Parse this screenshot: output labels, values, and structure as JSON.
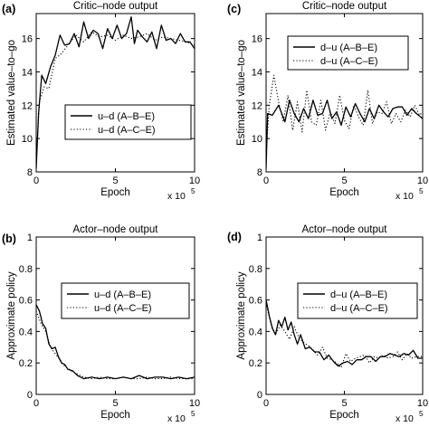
{
  "chart_data": [
    {
      "type": "line",
      "panel_label": "(a)",
      "title": "Critic–node output",
      "xlabel": "Epoch",
      "x_exponent": "x 10",
      "x_exponent_power": "5",
      "ylabel": "Estimated value–to–go",
      "xlim": [
        0,
        10
      ],
      "ylim": [
        8,
        17.5
      ],
      "xticks": [
        "0",
        "5",
        "10"
      ],
      "yticks": [
        "8",
        "10",
        "12",
        "14",
        "16"
      ],
      "xtick_values": [
        0,
        5,
        10
      ],
      "ytick_values": [
        8,
        10,
        12,
        14,
        16
      ],
      "legend_position": "lower-right",
      "series": [
        {
          "name": "u–d (A–B–E)",
          "style": "solid",
          "x": [
            0,
            0.15,
            0.35,
            0.6,
            0.9,
            1.2,
            1.5,
            1.8,
            2.1,
            2.4,
            2.7,
            3.0,
            3.3,
            3.6,
            3.9,
            4.2,
            4.5,
            4.8,
            5.1,
            5.4,
            5.7,
            6.0,
            6.2,
            6.4,
            6.7,
            7.0,
            7.3,
            7.6,
            7.9,
            8.2,
            8.5,
            8.8,
            9.1,
            9.4,
            9.7,
            10
          ],
          "y": [
            8.2,
            11.5,
            13.8,
            13.3,
            14.3,
            15.0,
            16.2,
            15.6,
            15.7,
            16.3,
            15.5,
            17.0,
            16.0,
            16.5,
            16.3,
            15.4,
            16.6,
            16.0,
            16.8,
            16.0,
            16.3,
            17.3,
            15.7,
            16.5,
            16.1,
            15.8,
            16.4,
            15.4,
            16.8,
            15.9,
            16.0,
            15.7,
            16.3,
            15.8,
            15.8,
            15.4
          ]
        },
        {
          "name": "u–d (A–C–E)",
          "style": "dotted",
          "x": [
            0,
            0.2,
            0.5,
            0.8,
            1.2,
            1.6,
            2.0,
            2.5,
            3.0,
            3.5,
            4.0,
            4.5,
            5.0,
            5.5,
            6.0,
            6.5,
            7.0,
            7.5,
            8.0,
            8.5,
            9.0,
            9.5,
            10
          ],
          "y": [
            8.5,
            12.2,
            13.1,
            13.0,
            14.8,
            15.1,
            15.6,
            16.2,
            15.8,
            16.4,
            16.1,
            16.2,
            15.9,
            16.2,
            16.0,
            16.1,
            16.3,
            15.9,
            16.1,
            16.0,
            15.9,
            15.8,
            15.6
          ]
        }
      ]
    },
    {
      "type": "line",
      "panel_label": "(c)",
      "title": "Critic–node output",
      "xlabel": "Epoch",
      "x_exponent": "x 10",
      "x_exponent_power": "5",
      "ylabel": "Estimated value–to–go",
      "xlim": [
        0,
        10
      ],
      "ylim": [
        8,
        17.5
      ],
      "xticks": [
        "0",
        "5",
        "10"
      ],
      "yticks": [
        "8",
        "10",
        "12",
        "14",
        "16"
      ],
      "xtick_values": [
        0,
        5,
        10
      ],
      "ytick_values": [
        8,
        10,
        12,
        14,
        16
      ],
      "legend_position": "top-right",
      "series": [
        {
          "name": "d–u (A–B–E)",
          "style": "solid",
          "x": [
            0,
            0.1,
            0.4,
            0.8,
            1.2,
            1.5,
            1.8,
            2.1,
            2.4,
            2.7,
            3.0,
            3.3,
            3.6,
            3.9,
            4.2,
            4.5,
            4.8,
            5.1,
            5.4,
            5.7,
            6.0,
            6.3,
            6.6,
            6.9,
            7.2,
            7.5,
            7.8,
            8.1,
            8.4,
            8.7,
            9.0,
            9.3,
            9.6,
            10
          ],
          "y": [
            8.2,
            11.5,
            11.4,
            12.0,
            11.0,
            12.3,
            11.5,
            11.0,
            11.8,
            11.2,
            12.3,
            11.4,
            11.5,
            12.3,
            11.2,
            11.6,
            10.8,
            11.9,
            11.3,
            12.1,
            11.5,
            11.0,
            11.8,
            11.2,
            12.0,
            11.6,
            11.3,
            11.8,
            11.9,
            11.9,
            11.4,
            11.8,
            11.5,
            11.2
          ]
        },
        {
          "name": "d–u (A–C–E)",
          "style": "dotted",
          "x": [
            0,
            0.2,
            0.5,
            0.8,
            1.1,
            1.4,
            1.7,
            2.0,
            2.3,
            2.6,
            2.9,
            3.2,
            3.5,
            3.8,
            4.1,
            4.4,
            4.7,
            5.0,
            5.3,
            5.6,
            5.9,
            6.2,
            6.5,
            6.8,
            7.1,
            7.4,
            7.7,
            8.0,
            8.3,
            8.6,
            8.9,
            9.2,
            9.5,
            9.8,
            10
          ],
          "y": [
            9.0,
            12.0,
            13.8,
            12.2,
            11.0,
            12.6,
            10.5,
            12.2,
            10.4,
            12.9,
            11.0,
            10.8,
            12.3,
            10.5,
            11.6,
            10.9,
            12.6,
            11.1,
            10.6,
            12.0,
            11.3,
            10.8,
            12.9,
            10.9,
            11.6,
            11.5,
            12.2,
            10.9,
            11.5,
            11.0,
            11.7,
            11.3,
            12.0,
            11.4,
            11.6
          ]
        }
      ]
    },
    {
      "type": "line",
      "panel_label": "(b)",
      "title": "Actor–node output",
      "xlabel": "Epoch",
      "x_exponent": "x 10",
      "x_exponent_power": "5",
      "ylabel": "Approximate policy",
      "xlim": [
        0,
        10
      ],
      "ylim": [
        0,
        1
      ],
      "xticks": [
        "0",
        "5",
        "10"
      ],
      "yticks": [
        "0",
        "0.2",
        "0.4",
        "0.6",
        "0.8",
        "1"
      ],
      "xtick_values": [
        0,
        5,
        10
      ],
      "ytick_values": [
        0,
        0.2,
        0.4,
        0.6,
        0.8,
        1
      ],
      "legend_position": "top-right",
      "series": [
        {
          "name": "u–d (A–B–E)",
          "style": "solid",
          "x": [
            0,
            0.2,
            0.4,
            0.6,
            0.8,
            1.0,
            1.2,
            1.4,
            1.6,
            1.8,
            2.0,
            2.3,
            2.6,
            3.0,
            3.5,
            4.0,
            4.5,
            5.0,
            5.5,
            6.0,
            6.5,
            7.0,
            7.5,
            8.0,
            8.5,
            9.0,
            9.5,
            10
          ],
          "y": [
            0.57,
            0.53,
            0.45,
            0.42,
            0.32,
            0.29,
            0.3,
            0.24,
            0.2,
            0.19,
            0.16,
            0.15,
            0.12,
            0.1,
            0.11,
            0.1,
            0.11,
            0.1,
            0.11,
            0.1,
            0.12,
            0.1,
            0.11,
            0.11,
            0.1,
            0.11,
            0.1,
            0.11
          ]
        },
        {
          "name": "u–d (A–C–E)",
          "style": "dotted",
          "x": [
            0,
            0.3,
            0.6,
            0.9,
            1.2,
            1.5,
            1.8,
            2.2,
            2.6,
            3.0,
            3.5,
            4.0,
            4.5,
            5.0,
            5.5,
            6.0,
            6.5,
            7.0,
            7.5,
            8.0,
            8.5,
            9.0,
            9.5,
            10
          ],
          "y": [
            0.53,
            0.45,
            0.4,
            0.3,
            0.26,
            0.22,
            0.18,
            0.15,
            0.13,
            0.11,
            0.1,
            0.11,
            0.1,
            0.1,
            0.11,
            0.1,
            0.1,
            0.11,
            0.1,
            0.1,
            0.11,
            0.1,
            0.1,
            0.1
          ]
        }
      ]
    },
    {
      "type": "line",
      "panel_label": "(d)",
      "title": "Actor–node output",
      "xlabel": "Epoch",
      "x_exponent": "x 10",
      "x_exponent_power": "5",
      "ylabel": "Approximate policy",
      "xlim": [
        0,
        10
      ],
      "ylim": [
        0,
        1
      ],
      "xticks": [
        "0",
        "5",
        "10"
      ],
      "yticks": [
        "0",
        "0.2",
        "0.4",
        "0.6",
        "0.8",
        "1"
      ],
      "xtick_values": [
        0,
        5,
        10
      ],
      "ytick_values": [
        0,
        0.2,
        0.4,
        0.6,
        0.8,
        1
      ],
      "legend_position": "top-right",
      "series": [
        {
          "name": "d–u (A–B–E)",
          "style": "solid",
          "x": [
            0,
            0.2,
            0.4,
            0.6,
            0.8,
            1.0,
            1.2,
            1.4,
            1.6,
            1.8,
            2.0,
            2.2,
            2.5,
            2.8,
            3.1,
            3.4,
            3.7,
            4.0,
            4.3,
            4.6,
            4.9,
            5.2,
            5.5,
            5.8,
            6.1,
            6.4,
            6.7,
            7.0,
            7.3,
            7.6,
            7.9,
            8.2,
            8.5,
            8.8,
            9.1,
            9.4,
            9.7,
            10
          ],
          "y": [
            0.6,
            0.5,
            0.42,
            0.38,
            0.47,
            0.43,
            0.49,
            0.41,
            0.46,
            0.38,
            0.32,
            0.38,
            0.29,
            0.3,
            0.27,
            0.27,
            0.22,
            0.25,
            0.21,
            0.18,
            0.2,
            0.21,
            0.19,
            0.22,
            0.22,
            0.24,
            0.24,
            0.21,
            0.24,
            0.24,
            0.26,
            0.25,
            0.24,
            0.26,
            0.25,
            0.28,
            0.23,
            0.23
          ]
        },
        {
          "name": "d–u (A–C–E)",
          "style": "dotted",
          "x": [
            0,
            0.3,
            0.6,
            0.9,
            1.2,
            1.5,
            1.8,
            2.1,
            2.4,
            2.7,
            3.0,
            3.3,
            3.6,
            3.9,
            4.2,
            4.5,
            4.8,
            5.1,
            5.4,
            5.7,
            6.0,
            6.3,
            6.6,
            6.9,
            7.2,
            7.5,
            7.8,
            8.1,
            8.4,
            8.7,
            9.0,
            9.3,
            9.6,
            10
          ],
          "y": [
            0.58,
            0.45,
            0.38,
            0.44,
            0.4,
            0.35,
            0.43,
            0.36,
            0.33,
            0.31,
            0.28,
            0.25,
            0.3,
            0.23,
            0.22,
            0.2,
            0.17,
            0.26,
            0.21,
            0.23,
            0.24,
            0.25,
            0.2,
            0.24,
            0.23,
            0.25,
            0.23,
            0.24,
            0.27,
            0.22,
            0.26,
            0.23,
            0.24,
            0.24
          ]
        }
      ]
    }
  ]
}
